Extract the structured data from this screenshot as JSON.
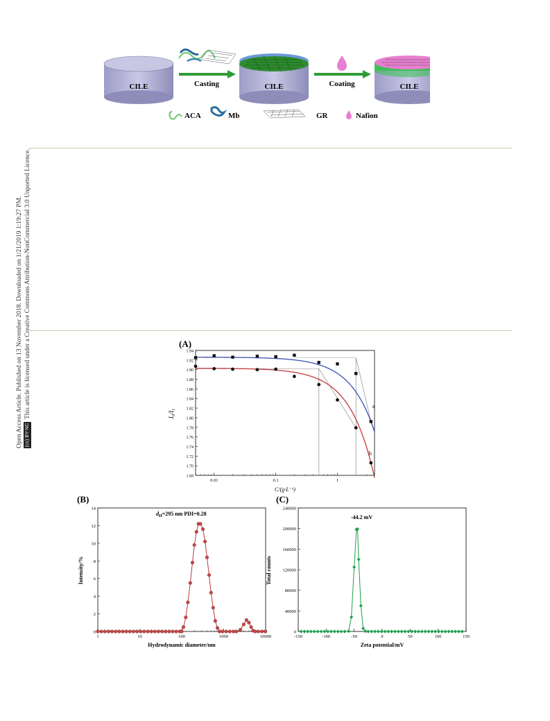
{
  "sidebar": {
    "line1": "Open Access Article. Published on 13 November 2018. Downloaded on 1/21/2019 1:19:27 PM.",
    "line2": "This article is licensed under a Creative Commons Attribution-NonCommercial 3.0 Unported Licence.",
    "badge_cc": "(cc)",
    "badge_text": "BY-NC"
  },
  "scheme": {
    "electrode_label": "CILE",
    "step1": "Casting",
    "step2": "Coating",
    "legend": [
      "ACA",
      "Mb",
      "GR",
      "Nafion"
    ],
    "colors": {
      "electrode": "#b9b8d9",
      "arrow": "#2e9b35",
      "gr": "#2e8b2e",
      "nafion": "#e87fd0"
    }
  },
  "figA": {
    "label": "(A)",
    "ylabel": "I0/I1",
    "ylabel_main": "I",
    "ylabel_sub0": "0",
    "ylabel_sep": "/",
    "ylabel_sub1": "1",
    "xlabel": "C/(g·L⁻¹)",
    "curve_labels": [
      "a",
      "b"
    ],
    "yticks": [
      "1.94",
      "1.92",
      "1.90",
      "1.88",
      "1.86",
      "1.84",
      "1.82",
      "1.80",
      "1.78",
      "1.76",
      "1.74",
      "1.72",
      "1.70",
      "1.68"
    ],
    "xticks": [
      "0.01",
      "0.1",
      "1"
    ]
  },
  "figB": {
    "label": "(B)",
    "annotation_pre": "d",
    "annotation_sub": "H",
    "annotation_post": "=295 nm PDI=0.28",
    "xlabel": "Hydrodynamic diameter/nm",
    "ylabel": "Intensity/%",
    "yticks": [
      "0",
      "2",
      "4",
      "6",
      "8",
      "10",
      "12",
      "14"
    ],
    "xticks": [
      "1",
      "10",
      "100",
      "1000",
      "10000"
    ]
  },
  "figC": {
    "label": "(C)",
    "annotation": "-44.2 mV",
    "xlabel": "Zeta potential/mV",
    "ylabel": "Total counts",
    "yticks": [
      "0",
      "40000",
      "80000",
      "120000",
      "160000",
      "200000",
      "240000"
    ],
    "xticks": [
      "-150",
      "-100",
      "-50",
      "0",
      "50",
      "100",
      "150"
    ]
  },
  "chart_data": [
    {
      "type": "scatter",
      "title": "",
      "xlabel": "C/(g·L⁻¹)",
      "ylabel": "I0/I1",
      "xscale": "log",
      "xlim": [
        0.005,
        4
      ],
      "ylim": [
        1.68,
        1.94
      ],
      "series": [
        {
          "name": "a",
          "color": "#3a4fb0",
          "x": [
            0.005,
            0.01,
            0.02,
            0.05,
            0.1,
            0.2,
            0.5,
            1,
            2,
            3.5
          ],
          "y": [
            1.925,
            1.929,
            1.926,
            1.928,
            1.927,
            1.93,
            1.915,
            1.912,
            1.892,
            1.792
          ]
        },
        {
          "name": "b",
          "color": "#c23a3a",
          "x": [
            0.005,
            0.01,
            0.02,
            0.05,
            0.1,
            0.2,
            0.5,
            1,
            2,
            3.5
          ],
          "y": [
            1.907,
            1.902,
            1.901,
            1.9,
            1.901,
            1.886,
            1.869,
            1.837,
            1.779,
            1.706
          ]
        }
      ],
      "grid": false
    },
    {
      "type": "line",
      "title": "",
      "xlabel": "Hydrodynamic diameter/nm",
      "ylabel": "Intensity/%",
      "xscale": "log",
      "xlim": [
        1,
        10000
      ],
      "ylim": [
        0,
        14
      ],
      "series": [
        {
          "color": "#b93a3a",
          "x": [
            1,
            1.6,
            2.5,
            4,
            6.3,
            10,
            16,
            25,
            40,
            63,
            100,
            110,
            125,
            140,
            160,
            180,
            200,
            225,
            250,
            280,
            320,
            360,
            400,
            450,
            500,
            560,
            630,
            710,
            800,
            1000,
            2000,
            2500,
            3000,
            3500,
            4000,
            4500,
            5000,
            5600,
            6300,
            8000,
            10000
          ],
          "y": [
            0,
            0,
            0,
            0,
            0,
            0,
            0,
            0,
            0,
            0,
            0,
            0.5,
            1.6,
            3.3,
            5.5,
            7.8,
            9.8,
            11.3,
            12.2,
            12.2,
            11.6,
            10.2,
            8.4,
            6.4,
            4.4,
            2.7,
            1.2,
            0.4,
            0,
            0,
            0,
            0.2,
            0.8,
            1.3,
            1.0,
            0.5,
            0.1,
            0,
            0,
            0,
            0
          ]
        }
      ],
      "annotation": "dH=295 nm PDI=0.28"
    },
    {
      "type": "line",
      "title": "",
      "xlabel": "Zeta potential/mV",
      "ylabel": "Total counts",
      "xlim": [
        -150,
        150
      ],
      "ylim": [
        0,
        240000
      ],
      "series": [
        {
          "color": "#1f9a4a",
          "x": [
            -145,
            -135,
            -125,
            -115,
            -105,
            -95,
            -85,
            -75,
            -65,
            -60,
            -55,
            -50,
            -46,
            -44,
            -42,
            -38,
            -34,
            -30,
            -25,
            -15,
            -5,
            5,
            15,
            25,
            35,
            45,
            55,
            65,
            75,
            85,
            95,
            105,
            115,
            125,
            135,
            145
          ],
          "y": [
            0,
            0,
            0,
            0,
            0,
            0,
            0,
            0,
            0,
            500,
            28000,
            125000,
            198000,
            199000,
            140000,
            50000,
            6000,
            500,
            0,
            0,
            0,
            0,
            0,
            0,
            0,
            0,
            0,
            0,
            0,
            0,
            0,
            0,
            0,
            0,
            0,
            0
          ]
        }
      ],
      "annotation": "-44.2 mV"
    }
  ]
}
